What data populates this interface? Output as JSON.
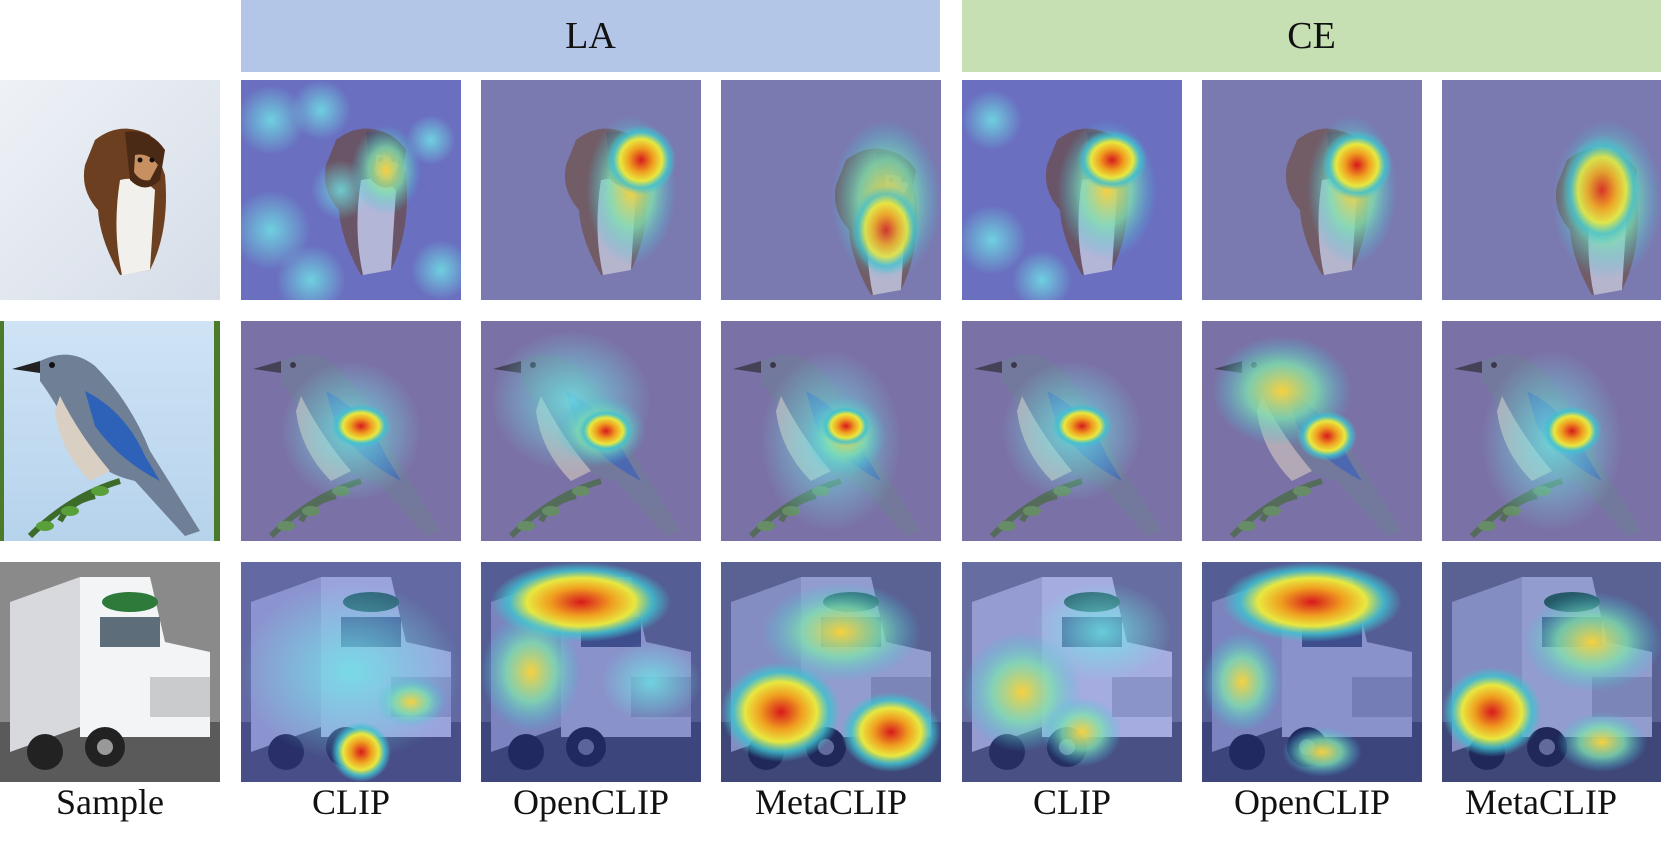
{
  "groups": [
    {
      "label": "LA",
      "color": "#b4c6e7"
    },
    {
      "label": "CE",
      "color": "#c6e0b4"
    }
  ],
  "columns": [
    "Sample",
    "CLIP",
    "OpenCLIP",
    "MetaCLIP",
    "CLIP",
    "OpenCLIP",
    "MetaCLIP"
  ],
  "rows": [
    {
      "subject": "collie dog on snow",
      "kind": "dog"
    },
    {
      "subject": "blue jay bird on branch",
      "kind": "bird"
    },
    {
      "subject": "white semi truck",
      "kind": "truck"
    }
  ]
}
